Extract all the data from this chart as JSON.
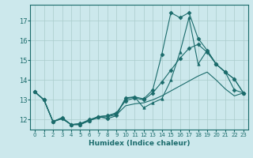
{
  "xlabel": "Humidex (Indice chaleur)",
  "bg_color": "#cce8ec",
  "line_color": "#1a6b6b",
  "grid_color": "#aacccc",
  "xlim": [
    -0.5,
    23.5
  ],
  "ylim": [
    11.5,
    17.8
  ],
  "xticks": [
    0,
    1,
    2,
    3,
    4,
    5,
    6,
    7,
    8,
    9,
    10,
    11,
    12,
    13,
    14,
    15,
    16,
    17,
    18,
    19,
    20,
    21,
    22,
    23
  ],
  "yticks": [
    12,
    13,
    14,
    15,
    16,
    17
  ],
  "lines": [
    {
      "x": [
        0,
        1,
        2,
        3,
        4,
        5,
        6,
        7,
        8,
        9,
        10,
        11,
        12,
        13,
        14,
        15,
        16,
        17,
        18,
        19,
        20,
        21,
        22,
        23
      ],
      "y": [
        13.4,
        13.0,
        11.9,
        12.1,
        11.75,
        11.75,
        11.95,
        12.15,
        12.05,
        12.2,
        13.1,
        13.15,
        13.05,
        13.5,
        15.3,
        17.4,
        17.15,
        17.4,
        16.1,
        15.5,
        14.8,
        14.4,
        13.5,
        13.35
      ],
      "marker": "D",
      "markersize": 2.5
    },
    {
      "x": [
        0,
        1,
        2,
        3,
        4,
        5,
        6,
        7,
        8,
        9,
        10,
        11,
        12,
        13,
        14,
        15,
        16,
        17,
        18,
        19,
        20,
        21,
        22,
        23
      ],
      "y": [
        13.4,
        13.0,
        11.9,
        12.1,
        11.75,
        11.75,
        11.95,
        12.15,
        12.2,
        12.3,
        13.05,
        13.15,
        12.6,
        12.85,
        13.05,
        14.0,
        15.4,
        17.15,
        14.8,
        15.5,
        14.8,
        14.4,
        14.05,
        13.35
      ],
      "marker": "^",
      "markersize": 2.5
    },
    {
      "x": [
        0,
        1,
        2,
        3,
        4,
        5,
        6,
        7,
        8,
        9,
        10,
        11,
        12,
        13,
        14,
        15,
        16,
        17,
        18,
        19,
        20,
        21,
        22,
        23
      ],
      "y": [
        13.4,
        13.0,
        11.9,
        12.05,
        11.75,
        11.8,
        12.0,
        12.15,
        12.2,
        12.35,
        12.95,
        13.1,
        13.0,
        13.35,
        13.9,
        14.5,
        15.1,
        15.6,
        15.8,
        15.4,
        14.8,
        14.4,
        14.05,
        13.35
      ],
      "marker": "D",
      "markersize": 2.5
    },
    {
      "x": [
        0,
        1,
        2,
        3,
        4,
        5,
        6,
        7,
        8,
        9,
        10,
        11,
        12,
        13,
        14,
        15,
        16,
        17,
        18,
        19,
        20,
        21,
        22,
        23
      ],
      "y": [
        13.4,
        13.0,
        11.9,
        12.05,
        11.75,
        11.8,
        11.95,
        12.1,
        12.15,
        12.25,
        12.7,
        12.8,
        12.85,
        13.0,
        13.2,
        13.45,
        13.7,
        13.95,
        14.2,
        14.4,
        14.0,
        13.55,
        13.2,
        13.35
      ],
      "marker": null,
      "markersize": 0
    }
  ]
}
